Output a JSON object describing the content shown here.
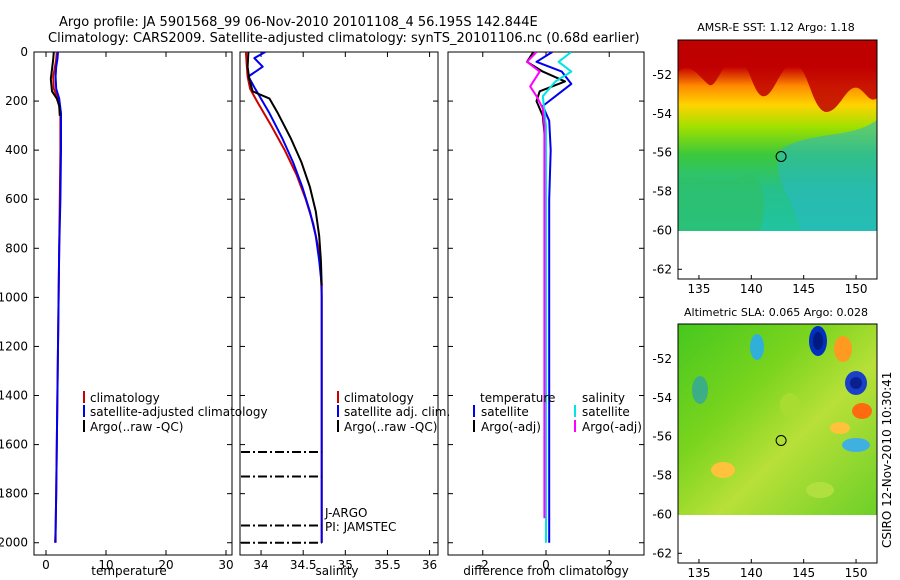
{
  "header": {
    "title_line1": "Argo profile: JA 5901568_99 06-Nov-2010 20101108_4 56.195S 142.844E",
    "title_line2": "Climatology: CARS2009. Satellite-adjusted climatology: synTS_20101106.nc (0.68d earlier)"
  },
  "footer": {
    "stamp": "CSIRO 12-Nov-2010 10:30:41"
  },
  "colors": {
    "climatology": "#cc0000",
    "satellite": "#0000ee",
    "argo": "#000000",
    "cyan": "#00e5e5",
    "magenta": "#ff00ff"
  },
  "chart_data": [
    {
      "type": "line",
      "id": "temperature",
      "xlabel": "temperature",
      "ylabel": "",
      "xlim": [
        -2,
        31
      ],
      "ylim": [
        0,
        2050
      ],
      "xticks": [
        0,
        10,
        20,
        30
      ],
      "xtick_labels": [
        "0",
        "10",
        "20",
        "30"
      ],
      "yticks": [
        0,
        200,
        400,
        600,
        800,
        1000,
        1200,
        1400,
        1600,
        1800,
        2000
      ],
      "ytick_labels": [
        "0",
        "200",
        "400",
        "600",
        "800",
        "1000",
        "1200",
        "1400",
        "1600",
        "1800",
        "2000"
      ],
      "legend": [
        "climatology",
        "satellite-adjusted climatology",
        "Argo(..raw -QC)"
      ],
      "series": [
        {
          "name": "climatology",
          "color": "#cc0000",
          "x": [
            1.8,
            1.7,
            1.5,
            1.2,
            1.3,
            2.0,
            2.4,
            2.4,
            2.3,
            2.2,
            2.1,
            2.0,
            1.9,
            1.8,
            1.7,
            1.6,
            1.5
          ],
          "y": [
            0,
            30,
            60,
            100,
            150,
            190,
            250,
            400,
            600,
            800,
            1000,
            1200,
            1400,
            1600,
            1800,
            1950,
            2000
          ]
        },
        {
          "name": "satellite",
          "color": "#0000ee",
          "x": [
            2.0,
            1.9,
            1.7,
            1.6,
            1.7,
            2.2,
            2.5,
            2.5,
            2.4,
            2.2,
            2.1,
            2.0,
            1.9,
            1.8,
            1.7,
            1.6,
            1.6
          ],
          "y": [
            0,
            30,
            60,
            100,
            150,
            190,
            250,
            400,
            600,
            800,
            1000,
            1200,
            1400,
            1600,
            1800,
            1950,
            2000
          ]
        },
        {
          "name": "Argo",
          "color": "#000000",
          "x": [
            1.3,
            1.2,
            1.0,
            0.8,
            1.0,
            1.8,
            2.2,
            2.3
          ],
          "y": [
            0,
            30,
            70,
            110,
            160,
            190,
            220,
            260
          ]
        }
      ]
    },
    {
      "type": "line",
      "id": "salinity",
      "xlabel": "salinity",
      "xlim": [
        33.75,
        36.1
      ],
      "ylim": [
        0,
        2050
      ],
      "xticks": [
        34,
        34.5,
        35,
        35.5,
        36
      ],
      "xtick_labels": [
        "34",
        "34.5",
        "35",
        "35.5",
        "36"
      ],
      "yticks": [
        0,
        200,
        400,
        600,
        800,
        1000,
        1200,
        1400,
        1600,
        1800,
        2000
      ],
      "legend": [
        "climatology",
        "satellite adj. clim.",
        "Argo(..raw -QC)"
      ],
      "annotations": [
        "J-ARGO",
        "PI: JAMSTEC"
      ],
      "qc_dashes_depth": [
        1630,
        1730,
        1930,
        2000
      ],
      "series": [
        {
          "name": "climatology",
          "color": "#cc0000",
          "x": [
            33.82,
            33.83,
            33.84,
            33.87,
            33.95,
            34.12,
            34.28,
            34.42,
            34.53,
            34.62,
            34.68,
            34.71,
            34.72,
            34.72,
            34.72,
            34.72,
            34.72
          ],
          "y": [
            0,
            50,
            100,
            150,
            200,
            300,
            400,
            500,
            600,
            700,
            800,
            900,
            1000,
            1200,
            1500,
            1800,
            2000
          ]
        },
        {
          "name": "satellite",
          "color": "#0000ee",
          "x": [
            34.05,
            33.92,
            34.02,
            33.85,
            33.93,
            34.1,
            34.25,
            34.38,
            34.49,
            34.58,
            34.65,
            34.69,
            34.72,
            34.72,
            34.72,
            34.72,
            34.72
          ],
          "y": [
            0,
            25,
            60,
            100,
            150,
            250,
            350,
            450,
            550,
            650,
            750,
            850,
            950,
            1200,
            1500,
            1800,
            2000
          ]
        },
        {
          "name": "Argo",
          "color": "#000000",
          "x": [
            33.85,
            33.84,
            33.86,
            33.9,
            34.1,
            34.2,
            34.35,
            34.48,
            34.58,
            34.65,
            34.69,
            34.71,
            34.72
          ],
          "y": [
            0,
            60,
            110,
            160,
            190,
            250,
            350,
            450,
            550,
            650,
            750,
            850,
            950
          ]
        }
      ]
    },
    {
      "type": "line",
      "id": "difference",
      "xlabel": "difference from climatology",
      "xlim": [
        -3.1,
        3.1
      ],
      "ylim": [
        0,
        2050
      ],
      "xticks": [
        -2,
        0,
        2
      ],
      "xtick_labels": [
        "-2",
        "0",
        "2"
      ],
      "yticks": [
        0,
        200,
        400,
        600,
        800,
        1000,
        1200,
        1400,
        1600,
        1800,
        2000
      ],
      "legend_temperature_title": "temperature",
      "legend_salinity_title": "salinity",
      "legend": [
        "satellite",
        "Argo(-adj)",
        "satellite",
        "Argo(-adj)"
      ],
      "series": [
        {
          "name": "temperature satellite",
          "color": "#0000ee",
          "x": [
            0.2,
            -0.3,
            0.5,
            0.8,
            0.3,
            -0.1,
            0.1,
            0.15,
            0.1,
            0.1,
            0.1,
            0.1,
            0.1
          ],
          "y": [
            0,
            40,
            80,
            130,
            180,
            220,
            280,
            400,
            600,
            1000,
            1500,
            1900,
            2000
          ]
        },
        {
          "name": "temperature Argo(-adj)",
          "color": "#000000",
          "x": [
            -0.4,
            -0.6,
            -0.1,
            0.6,
            -0.2,
            -0.3,
            -0.1,
            0.0,
            0.0,
            0.0
          ],
          "y": [
            0,
            40,
            80,
            120,
            160,
            200,
            260,
            400,
            600,
            800
          ]
        },
        {
          "name": "salinity satellite",
          "color": "#00e5e5",
          "x": [
            0.8,
            0.4,
            0.8,
            0.3,
            -0.1,
            -0.05,
            0.0,
            0.0,
            0.0,
            0.0,
            0.0
          ],
          "y": [
            0,
            40,
            80,
            120,
            180,
            240,
            300,
            600,
            1000,
            1500,
            2000
          ]
        },
        {
          "name": "salinity Argo(-adj)",
          "color": "#ff00ff",
          "x": [
            -0.3,
            -0.6,
            -0.2,
            -0.5,
            -0.3,
            -0.1,
            -0.05,
            -0.05,
            -0.05
          ],
          "y": [
            0,
            40,
            80,
            140,
            180,
            230,
            300,
            1000,
            1900
          ]
        }
      ]
    },
    {
      "type": "heatmap",
      "id": "sst_map",
      "title": "AMSR-E SST: 1.12 Argo: 1.18",
      "xlim": [
        133,
        152
      ],
      "ylim": [
        -62.5,
        -50.2
      ],
      "xticks": [
        135,
        140,
        145,
        150
      ],
      "xtick_labels": [
        "135",
        "140",
        "145",
        "150"
      ],
      "yticks": [
        -52,
        -54,
        -56,
        -58,
        -60,
        -62
      ],
      "ytick_labels": [
        "-52",
        "-54",
        "-56",
        "-58",
        "-60",
        "-62"
      ],
      "data_extent_lat": [
        -60,
        -50.2
      ],
      "marker": {
        "lon": 142.844,
        "lat": -56.195
      }
    },
    {
      "type": "heatmap",
      "id": "sla_map",
      "title": "Altimetric SLA: 0.065 Argo: 0.028",
      "xlim": [
        133,
        152
      ],
      "ylim": [
        -62.5,
        -50.2
      ],
      "xticks": [
        135,
        140,
        145,
        150
      ],
      "xtick_labels": [
        "135",
        "140",
        "145",
        "150"
      ],
      "yticks": [
        -52,
        -54,
        -56,
        -58,
        -60,
        -62
      ],
      "ytick_labels": [
        "-52",
        "-54",
        "-56",
        "-58",
        "-60",
        "-62"
      ],
      "data_extent_lat": [
        -60,
        -50.2
      ],
      "marker": {
        "lon": 142.844,
        "lat": -56.195
      }
    }
  ]
}
